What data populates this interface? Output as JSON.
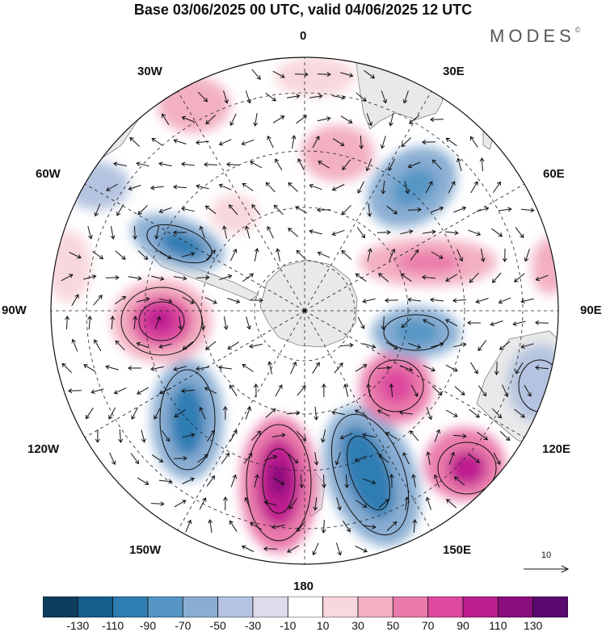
{
  "title": "Base 03/06/2025 00 UTC, valid 04/06/2025 12 UTC",
  "brand": "MODES",
  "brand_mark": "©",
  "meridian_labels": {
    "m0": "0",
    "m30e": "30E",
    "m60e": "60E",
    "m90e": "90E",
    "m120e": "120E",
    "m150e": "150E",
    "m180": "180",
    "m150w": "150W",
    "m120w": "120W",
    "m90w": "90W",
    "m60w": "60W",
    "m30w": "30W"
  },
  "vector_reference": "10",
  "colorbar": {
    "ticks": [
      "-130",
      "-110",
      "-90",
      "-70",
      "-50",
      "-30",
      "-10",
      "10",
      "30",
      "50",
      "70",
      "90",
      "110",
      "130"
    ],
    "colors": [
      "#0d3d5c",
      "#155e8d",
      "#2e7db3",
      "#5596c4",
      "#8aaed3",
      "#b4c3df",
      "#dcdcec",
      "#ffffff",
      "#f8d8dc",
      "#f3b0c2",
      "#ea7bac",
      "#dd4a9f",
      "#be1e8f",
      "#8a0e7e",
      "#5a0a6e"
    ]
  },
  "colors": {
    "land": "#e9e9e9",
    "ocean": "#ffffff",
    "grid": "#222222",
    "arrow": "#111111"
  }
}
